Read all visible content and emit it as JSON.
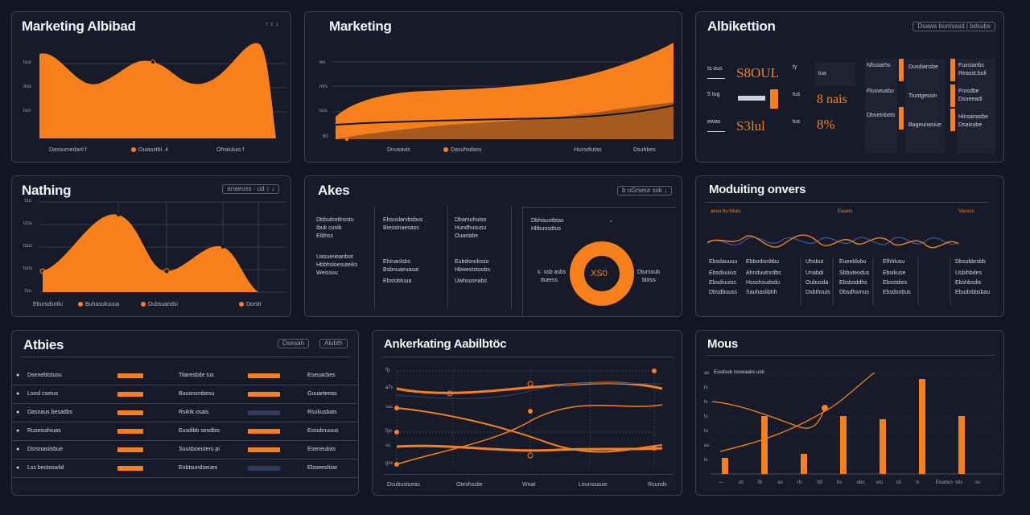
{
  "colors": {
    "accent": "#f7801c",
    "panel": "#171b29",
    "background": "#121624",
    "muted": "#2f3a5c"
  },
  "p1": {
    "title": "Marketing Albibad",
    "ctrl": "↑ ↕ ↓",
    "y_ticks": [
      "tsut",
      "dsd",
      "tssi"
    ],
    "legend": [
      "Dassumedanl  f",
      "Ouiasstbl .4",
      "Ohsiiuluis  f"
    ]
  },
  "p2": {
    "title": "Marketing",
    "y_ticks": [
      "ws",
      "mrs",
      "uus",
      "60"
    ],
    "legend": [
      "Dnusavis",
      "Dasuhsdass",
      "Huxsdiutas",
      "Dsuhbes"
    ]
  },
  "p3": {
    "title": "Albikettion",
    "ctrl": "Dsaws buntsssd | bdsubs",
    "stats": [
      {
        "label": "ts ous",
        "value": "S8OUL",
        "chip": "ty"
      },
      {
        "label": "5 tug",
        "value": "",
        "chip": "tus"
      },
      {
        "label": "ewas",
        "value": "S3lul",
        "chip": "tus"
      }
    ],
    "stats2": [
      "tua",
      "8 nais",
      "8%"
    ],
    "items": [
      [
        "Nfsstarhs",
        "Dusdiansbe"
      ],
      [
        "Fluswuabu",
        "Tiuntgessin"
      ],
      [
        "Dbsetnbets",
        "Bageunasiue"
      ]
    ],
    "items2": [
      [
        "Fuxsianbs",
        "Reasst.buli"
      ],
      [
        "Frosdbe",
        "Dsueeadi"
      ],
      [
        "Hinsanasbe",
        "Dsaisube"
      ]
    ]
  },
  "p4": {
    "title": "Nathing",
    "ctrl": "anaeuss  ·  ud  ↕  ↓",
    "y_ticks": [
      "tzo",
      "tzos",
      "tuss",
      "tsns",
      "tsu"
    ],
    "legend": [
      "Ebursdsntlu",
      "Buhasukuuus",
      "Dubsuandsi",
      "Dorstr"
    ]
  },
  "p5": {
    "title": "Akes",
    "ctrl": "b uGrseur ssk  ↓",
    "cols": [
      [
        "Dbbuitrotlnsstu",
        "Ibuk cusib",
        "Eibhss",
        "",
        "Uasuerieanbot",
        "Hbbhsioesuteiks",
        "Weissuu"
      ],
      [
        "Ebsuslarvbsbus",
        "Biessinaesass",
        "",
        "",
        "Ehinanlsbs",
        "Bsbnuaeuasai",
        "Ebstobtuua"
      ],
      [
        "Dbarsuhuiso",
        "Hundhususu",
        "Ouartabe",
        "",
        "Eubdsnobsso",
        "Hbweststoobs",
        "Uwhsusnabs"
      ]
    ],
    "donut_side": [
      "Dbhisustbtas",
      "Hltbunsdtus"
    ],
    "donut_label": "XS0",
    "donut_left": "s   ·ssb asbs",
    "donut_left2": "ttuerss",
    "donut_right": "Dturssub",
    "donut_right2": "bbtss"
  },
  "p6": {
    "title": "Moduiting onvers",
    "legend": [
      "aeuu bu lotaiu",
      "Eaueis",
      "Vausus"
    ],
    "table": [
      [
        "Ebsdauuuu",
        "Ebbodisnbbu",
        "Uhsbut",
        "Eueeblobu",
        "Efhhlusu",
        "Dbsubbrsbb"
      ],
      [
        "Ebsdiuuius",
        "Ahnduutnrdbs",
        "Unabdi",
        "Sbbuteodus",
        "Ebsikuse",
        "Usbihbdes"
      ],
      [
        "Ebsdiuuiss",
        "Hssshsudsdu",
        "Oubusda",
        "Ebsbsddhs",
        "Ebsstdies",
        "Ebshbsdis"
      ],
      [
        "Dbsdbuuss",
        "Sauhasiibhh",
        "Dsbthsuis",
        "Dbsdhsmus",
        "Ebsdsnbus",
        "Ebudnbbsbau"
      ]
    ]
  },
  "p7": {
    "title": "Atbies",
    "ctrls": [
      "Dsesah",
      "Alubth"
    ],
    "rows": [
      {
        "name": "Dsenebtstusu",
        "mid": "Tilaresbde tus",
        "right": "Eseuacbes",
        "bar1": 1,
        "bar2": 1
      },
      {
        "name": "Lsosl cseius",
        "mid": "Buusnsmbesu",
        "right": "Guuarteeas",
        "bar1": 1,
        "bar2": 1
      },
      {
        "name": "Dasnaus besadbs",
        "mid": "Rsiktk osais",
        "right": "Rsukusbats",
        "bar1": 1,
        "bar2": 0
      },
      {
        "name": "Ruseisshiuas",
        "mid": "Eusdibb sesdbis",
        "right": "Essubnuuus",
        "bar1": 1,
        "bar2": 1
      },
      {
        "name": "Dsrsnasiisbue",
        "mid": "Suusboeuteru pi",
        "right": "Eseneubas",
        "bar1": 1,
        "bar2": 1
      },
      {
        "name": "Lss beotsswlid",
        "mid": "Enbtsundseues",
        "right": "Elsseeshsw",
        "bar1": 1,
        "bar2": 0
      }
    ]
  },
  "p8": {
    "title": "Ankerkating Aabilbtöc",
    "y_ticks": [
      "fg",
      "a7s",
      "ssc",
      "fgs",
      "ss",
      "gss"
    ],
    "x_labels": [
      "Dsubustueas",
      "Oteshsslie",
      "Wnat",
      "Leunssauie",
      "Rsunds"
    ]
  },
  "p9": {
    "title": "Mous",
    "ctrl": "Essdsub  nsswaabs  usb",
    "y_ticks": [
      "as",
      "ts",
      "ts",
      "ts",
      "tu",
      "as",
      "ls"
    ],
    "x_labels": [
      "—",
      "sb",
      "fb",
      "as",
      "rb",
      "b5",
      "bs",
      "obo",
      "elu",
      "sh",
      "ts",
      "Eluabus",
      "sbs",
      "su"
    ],
    "chart_data": {
      "type": "bar",
      "values": [
        20,
        0,
        72,
        0,
        25,
        0,
        72,
        0,
        68,
        0,
        118,
        0,
        72,
        0
      ],
      "ylim": [
        0,
        120
      ]
    }
  }
}
